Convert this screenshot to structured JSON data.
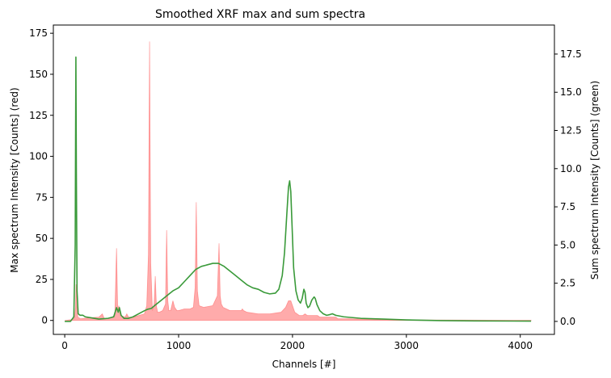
{
  "chart_data": {
    "type": "line",
    "title": "Smoothed XRF max and sum spectra",
    "xlabel": "Channels [#]",
    "ylabel_left": "Max spectrum Intensity [Counts] (red)",
    "ylabel_right": "Sum spectrum Intensity [Counts] (green)",
    "xlim": [
      -100,
      4300
    ],
    "ylim_left": [
      -8.5,
      180
    ],
    "ylim_right": [
      -0.85,
      19.4
    ],
    "xticks": [
      0,
      1000,
      2000,
      3000,
      4000
    ],
    "yticks_left": [
      0,
      25,
      50,
      75,
      100,
      125,
      150,
      175
    ],
    "yticks_right": [
      0.0,
      2.5,
      5.0,
      7.5,
      10.0,
      12.5,
      15.0,
      17.5
    ],
    "grid": false,
    "series": [
      {
        "axis": "left",
        "color": "#ff6666",
        "style": "filled-area",
        "x": [
          0,
          60,
          85,
          95,
          100,
          105,
          115,
          140,
          200,
          300,
          330,
          345,
          360,
          400,
          440,
          455,
          465,
          475,
          490,
          530,
          545,
          560,
          600,
          650,
          700,
          720,
          735,
          745,
          755,
          770,
          785,
          795,
          805,
          815,
          830,
          860,
          885,
          895,
          905,
          915,
          930,
          950,
          965,
          975,
          985,
          1000,
          1050,
          1100,
          1130,
          1145,
          1155,
          1165,
          1180,
          1220,
          1300,
          1340,
          1355,
          1365,
          1375,
          1390,
          1450,
          1500,
          1550,
          1560,
          1570,
          1600,
          1700,
          1800,
          1900,
          1940,
          1965,
          1985,
          2000,
          2020,
          2060,
          2090,
          2110,
          2130,
          2160,
          2200,
          2220,
          2240,
          2280,
          2350,
          2380,
          2400,
          2500,
          2700,
          3000,
          3500,
          4095
        ],
        "y": [
          0,
          0.5,
          1.5,
          8,
          22,
          9,
          2,
          1,
          1.5,
          2,
          4,
          1.5,
          1,
          1.5,
          3,
          44,
          6,
          9,
          3,
          2,
          4,
          2,
          2,
          3,
          4,
          9,
          40,
          170,
          35,
          6,
          10,
          27,
          9,
          5,
          5,
          6,
          10,
          55,
          12,
          6,
          6,
          12,
          8,
          7,
          6,
          6,
          7,
          7,
          8,
          20,
          72,
          18,
          9,
          8,
          9,
          15,
          47,
          15,
          10,
          8,
          6,
          6,
          6,
          7,
          6,
          5,
          4,
          4,
          5,
          8,
          12,
          12,
          9,
          5,
          3,
          3,
          4,
          3,
          3,
          3,
          3,
          2,
          2,
          2,
          2,
          1,
          1,
          0.5,
          0.3,
          0.2,
          0.1
        ]
      },
      {
        "axis": "right",
        "color": "#3a9a3a",
        "style": "line",
        "x": [
          0,
          50,
          80,
          92,
          98,
          102,
          108,
          118,
          135,
          160,
          180,
          220,
          300,
          380,
          430,
          455,
          470,
          480,
          495,
          520,
          560,
          600,
          650,
          700,
          730,
          760,
          800,
          850,
          900,
          950,
          1000,
          1050,
          1100,
          1150,
          1200,
          1250,
          1300,
          1350,
          1400,
          1450,
          1500,
          1550,
          1600,
          1650,
          1700,
          1750,
          1800,
          1850,
          1880,
          1910,
          1930,
          1950,
          1965,
          1975,
          1985,
          1995,
          2010,
          2030,
          2050,
          2070,
          2085,
          2100,
          2110,
          2120,
          2135,
          2150,
          2170,
          2190,
          2200,
          2215,
          2240,
          2270,
          2300,
          2330,
          2350,
          2380,
          2450,
          2600,
          2800,
          3000,
          3300,
          3600,
          4095
        ],
        "y": [
          0,
          0,
          0.3,
          5,
          17.3,
          10,
          2,
          0.5,
          0.4,
          0.4,
          0.3,
          0.25,
          0.15,
          0.2,
          0.3,
          0.9,
          0.6,
          0.9,
          0.4,
          0.2,
          0.2,
          0.3,
          0.5,
          0.7,
          0.8,
          0.85,
          1.1,
          1.4,
          1.7,
          2.0,
          2.2,
          2.6,
          3.0,
          3.4,
          3.6,
          3.7,
          3.8,
          3.8,
          3.6,
          3.3,
          3.0,
          2.7,
          2.4,
          2.2,
          2.1,
          1.9,
          1.8,
          1.85,
          2.1,
          3.0,
          4.5,
          7.0,
          8.8,
          9.2,
          8.5,
          6.5,
          3.5,
          2.0,
          1.4,
          1.2,
          1.5,
          2.1,
          1.9,
          1.2,
          0.9,
          1.0,
          1.4,
          1.6,
          1.5,
          1.1,
          0.7,
          0.5,
          0.4,
          0.45,
          0.5,
          0.4,
          0.3,
          0.2,
          0.15,
          0.1,
          0.05,
          0.03,
          0.02
        ]
      }
    ]
  }
}
